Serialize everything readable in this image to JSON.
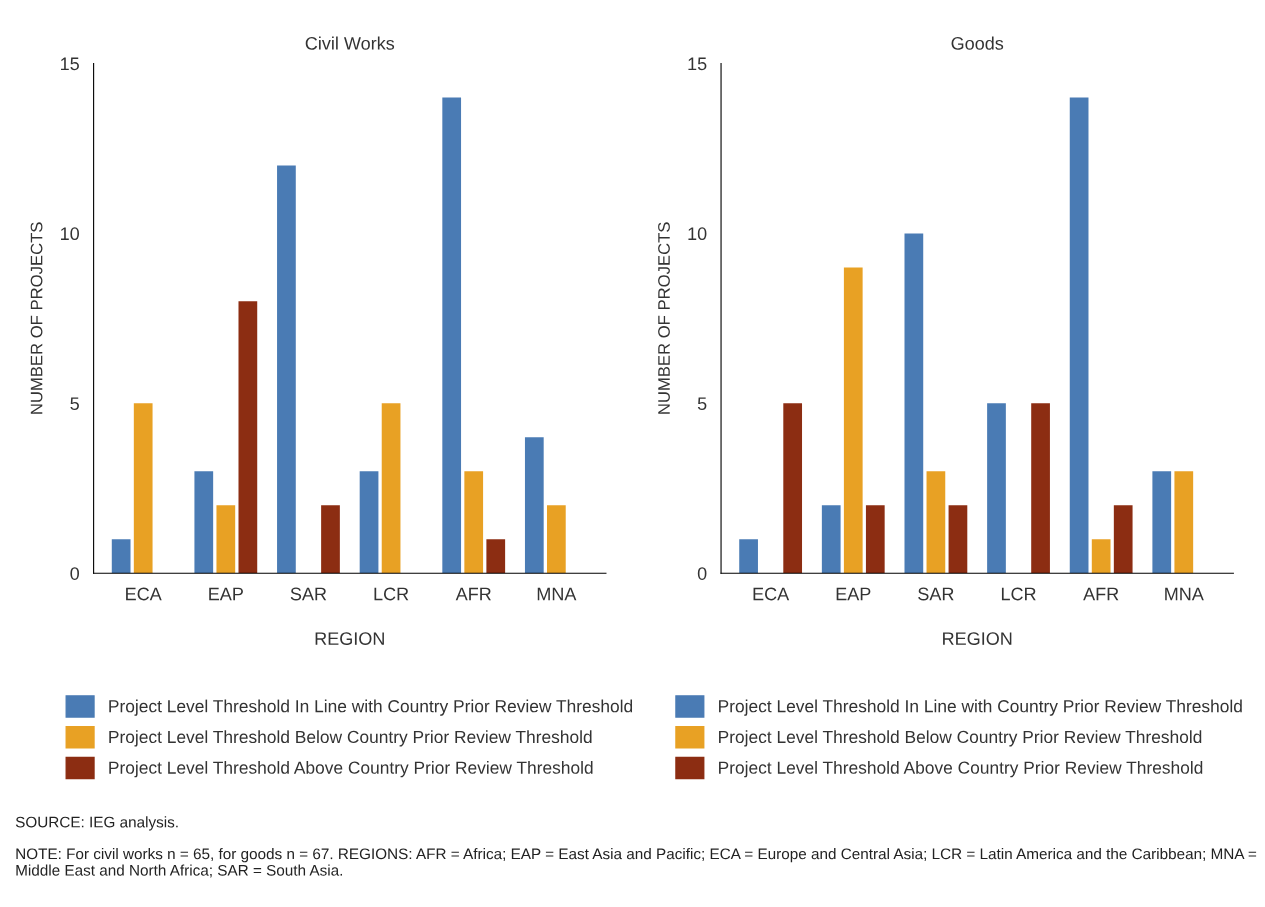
{
  "chart_data": [
    {
      "type": "bar",
      "title": "Civil Works",
      "xlabel": "REGION",
      "ylabel": "NUMBER OF PROJECTS",
      "categories": [
        "ECA",
        "EAP",
        "SAR",
        "LCR",
        "AFR",
        "MNA"
      ],
      "series": [
        {
          "name": "Project Level Threshold In Line with Country Prior Review Threshold",
          "color": "#4a7bb4",
          "values": [
            1,
            3,
            12,
            3,
            14,
            4
          ]
        },
        {
          "name": "Project Level Threshold Below Country Prior Review Threshold",
          "color": "#e8a124",
          "values": [
            5,
            2,
            0,
            5,
            3,
            2
          ]
        },
        {
          "name": "Project Level Threshold Above Country Prior Review Threshold",
          "color": "#8c2d12",
          "values": [
            0,
            8,
            2,
            0,
            1,
            0
          ]
        }
      ],
      "ylim": [
        0,
        15
      ],
      "yticks": [
        0,
        5,
        10,
        15
      ],
      "grid": false,
      "legend": "bottom",
      "annotations": [
        "SOURCE: IEG analysis.",
        "NOTE: For civil works n = 65, for goods n = 67. REGIONS: AFR = Africa; EAP = East Asia and Pacific; ECA = Europe and Central Asia; LCR = Latin America and the Caribbean; MNA = Middle East and North Africa; SAR = South Asia."
      ]
    },
    {
      "type": "bar",
      "title": "Goods",
      "xlabel": "REGION",
      "ylabel": "NUMBER OF PROJECTS",
      "categories": [
        "ECA",
        "EAP",
        "SAR",
        "LCR",
        "AFR",
        "MNA"
      ],
      "series": [
        {
          "name": "Project Level Threshold In Line with Country Prior Review Threshold",
          "color": "#4a7bb4",
          "values": [
            1,
            2,
            10,
            5,
            14,
            3
          ]
        },
        {
          "name": "Project Level Threshold Below Country Prior Review Threshold",
          "color": "#e8a124",
          "values": [
            0,
            9,
            3,
            0,
            1,
            3
          ]
        },
        {
          "name": "Project Level Threshold Above Country Prior Review Threshold",
          "color": "#8c2d12",
          "values": [
            5,
            2,
            2,
            5,
            2,
            0
          ]
        }
      ],
      "ylim": [
        0,
        15
      ],
      "yticks": [
        0,
        5,
        10,
        15
      ],
      "grid": false,
      "legend": "bottom"
    }
  ]
}
